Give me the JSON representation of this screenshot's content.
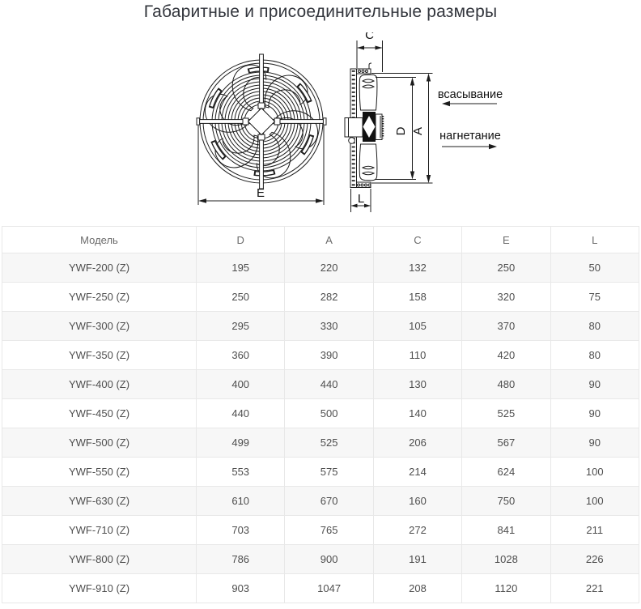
{
  "page": {
    "title": "Габаритные и присоединительные размеры"
  },
  "diagram": {
    "dim_c": "C",
    "dim_d": "D",
    "dim_a": "A",
    "dim_e": "E",
    "dim_l": "L",
    "suction_label": "всасывание",
    "discharge_label": "нагнетание"
  },
  "table": {
    "headers": [
      "Модель",
      "D",
      "A",
      "C",
      "E",
      "L"
    ],
    "rows": [
      [
        "YWF-200 (Z)",
        "195",
        "220",
        "132",
        "250",
        "50"
      ],
      [
        "YWF-250 (Z)",
        "250",
        "282",
        "158",
        "320",
        "75"
      ],
      [
        "YWF-300 (Z)",
        "295",
        "330",
        "105",
        "370",
        "80"
      ],
      [
        "YWF-350 (Z)",
        "360",
        "390",
        "110",
        "420",
        "80"
      ],
      [
        "YWF-400 (Z)",
        "400",
        "440",
        "130",
        "480",
        "90"
      ],
      [
        "YWF-450 (Z)",
        "440",
        "500",
        "140",
        "525",
        "90"
      ],
      [
        "YWF-500 (Z)",
        "499",
        "525",
        "206",
        "567",
        "90"
      ],
      [
        "YWF-550 (Z)",
        "553",
        "575",
        "214",
        "624",
        "100"
      ],
      [
        "YWF-630 (Z)",
        "610",
        "670",
        "160",
        "750",
        "100"
      ],
      [
        "YWF-710 (Z)",
        "703",
        "765",
        "272",
        "841",
        "211"
      ],
      [
        "YWF-800 (Z)",
        "786",
        "900",
        "191",
        "1028",
        "226"
      ],
      [
        "YWF-910 (Z)",
        "903",
        "1047",
        "208",
        "1120",
        "221"
      ]
    ]
  },
  "colors": {
    "title_text": "#32353c",
    "table_text": "#4e4e4e",
    "header_text": "#6b6b6b",
    "table_border": "#e8e8e8",
    "row_stripe": "#f7f7f7",
    "drawing_line": "#1c1c1c"
  }
}
